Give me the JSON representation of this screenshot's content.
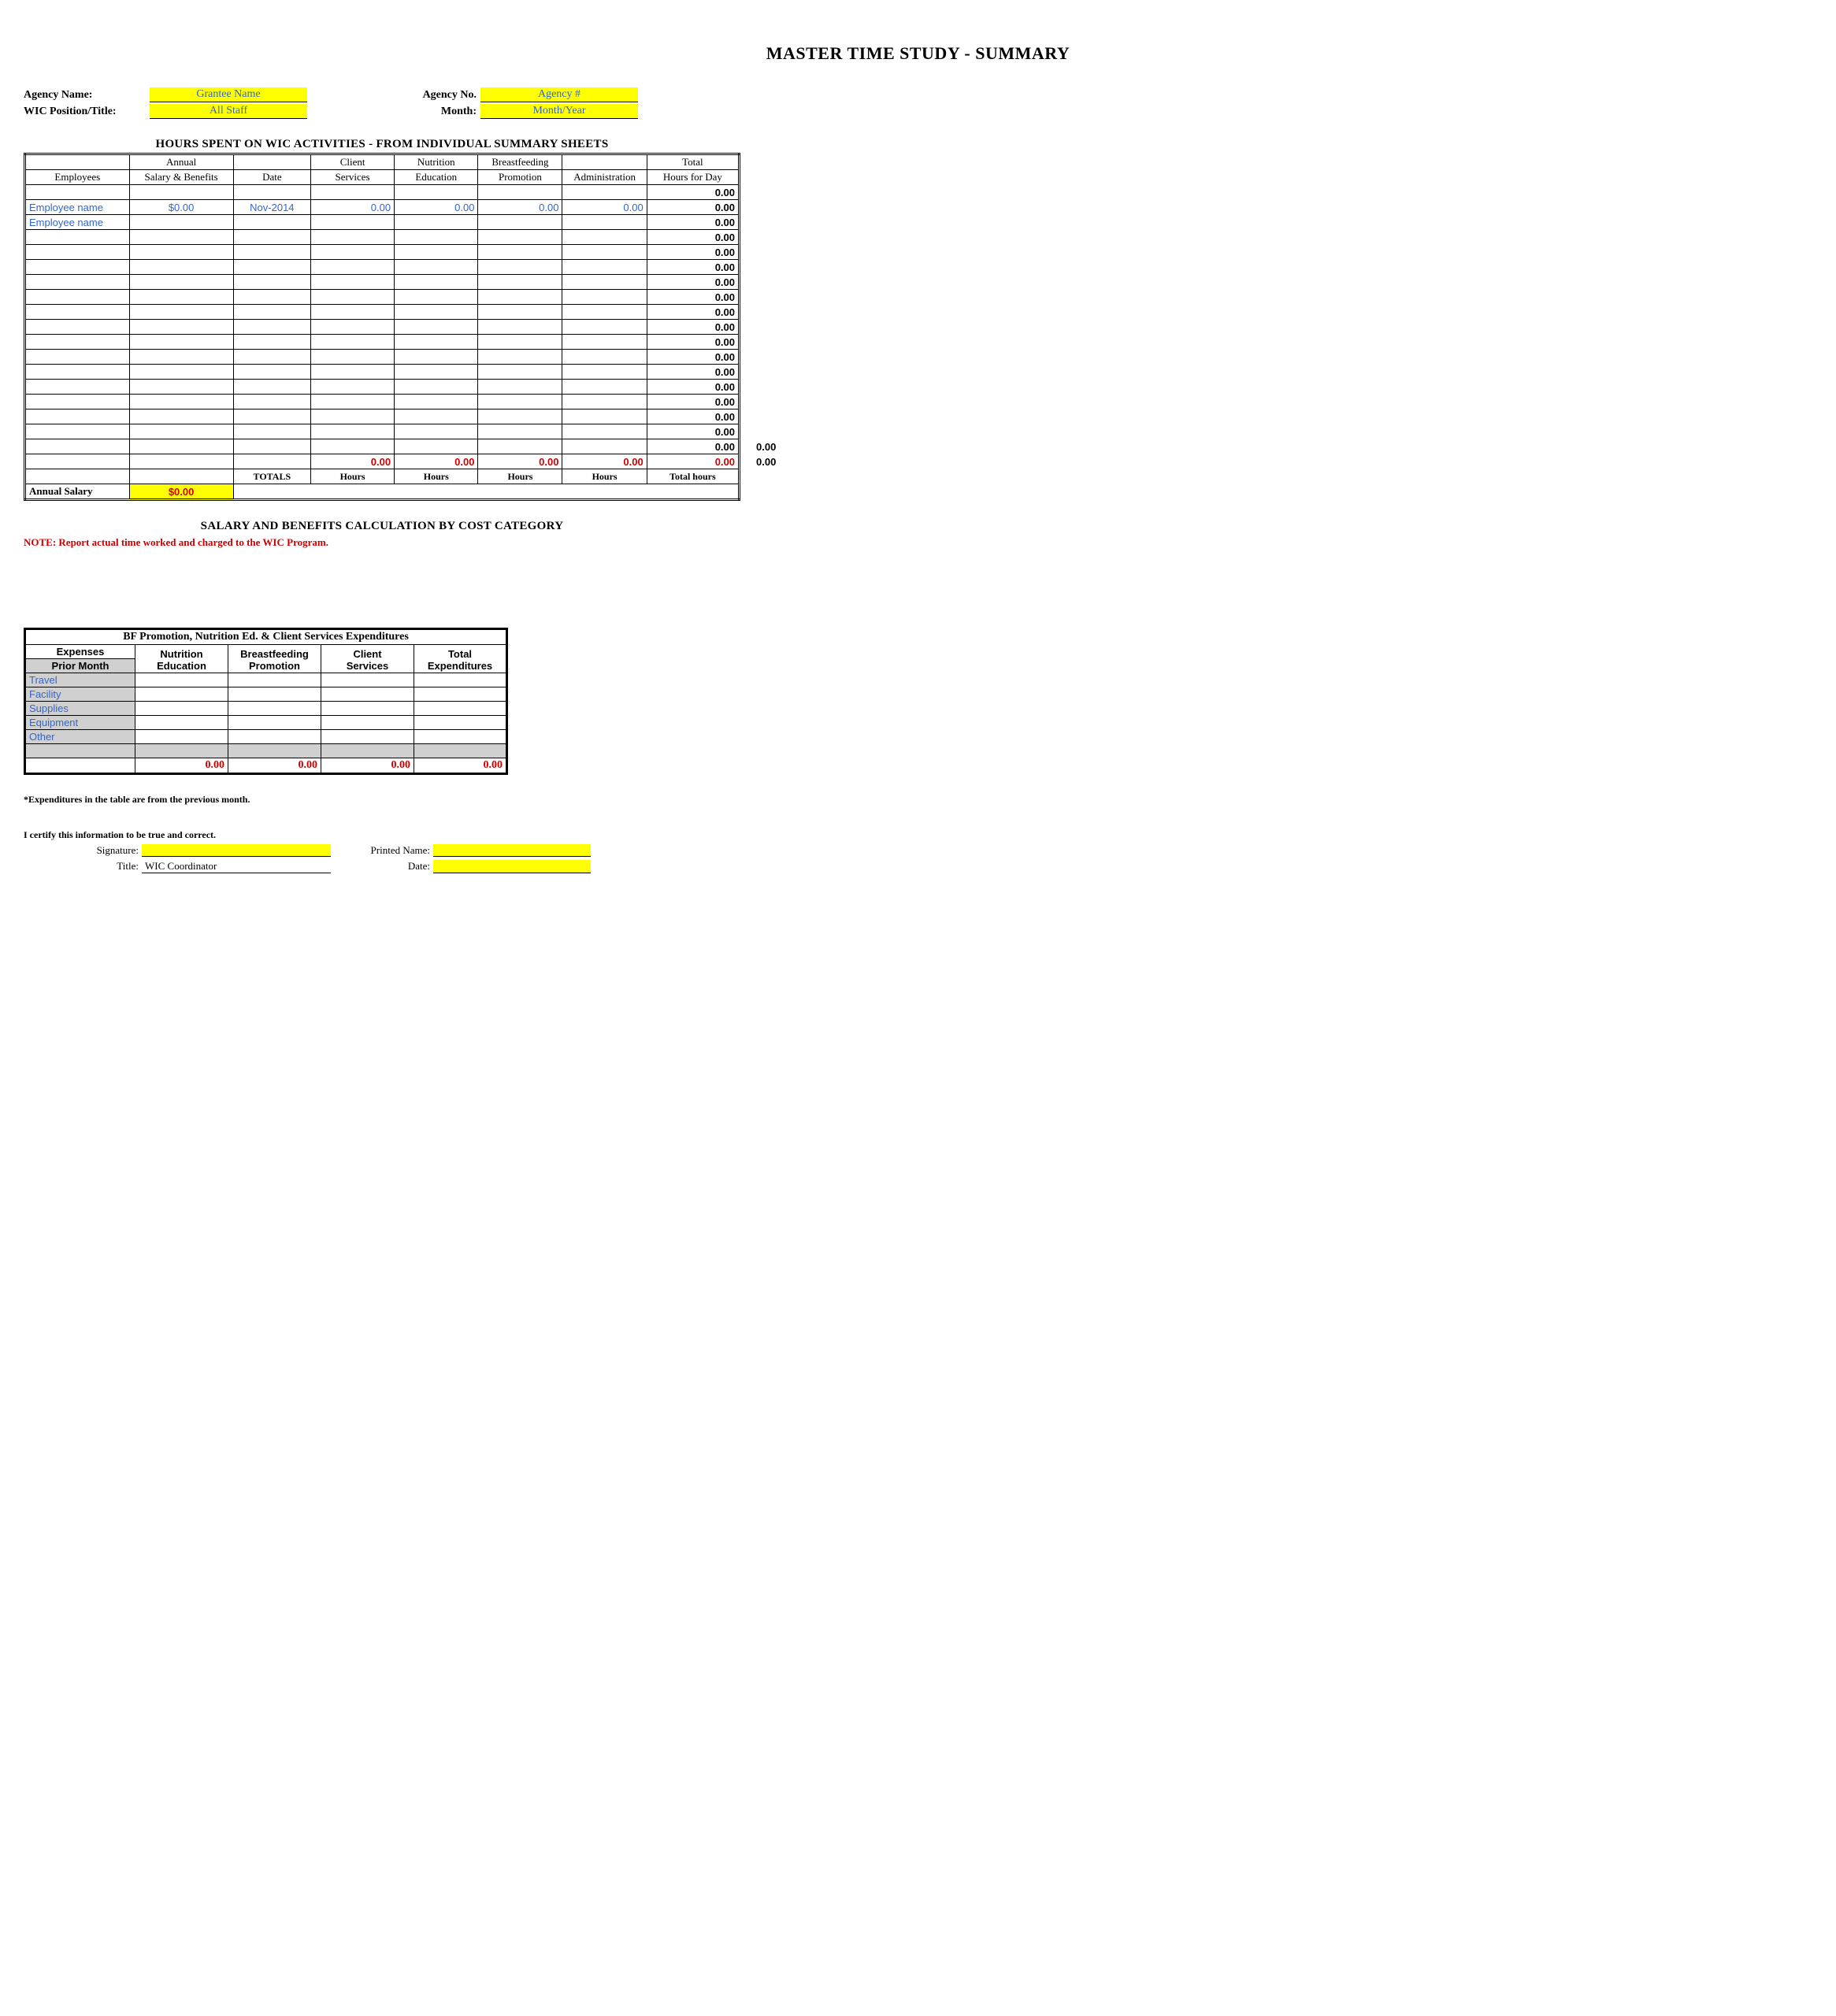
{
  "title": "MASTER TIME STUDY - SUMMARY",
  "info": {
    "agency_name_label": "Agency Name:",
    "agency_name": "Grantee Name",
    "wic_position_label": "WIC Position/Title:",
    "wic_position": "All Staff",
    "agency_no_label": "Agency No.",
    "agency_no": "Agency #",
    "month_label": "Month:",
    "month": "Month/Year"
  },
  "hours_section_header": "HOURS SPENT ON WIC ACTIVITIES - FROM INDIVIDUAL SUMMARY SHEETS",
  "columns": {
    "employees": "Employees",
    "salary_top": "Annual",
    "salary_bottom": "Salary & Benefits",
    "date": "Date",
    "client_top": "Client",
    "client_bottom": "Services",
    "nut_top": "Nutrition",
    "nut_bottom": "Education",
    "bf_top": "Breastfeeding",
    "bf_bottom": "Promotion",
    "admin": "Administration",
    "total_top": "Total",
    "total_bottom": "Hours for Day"
  },
  "rows": [
    {
      "emp": "",
      "sal": "",
      "date": "",
      "cs": "",
      "ne": "",
      "bf": "",
      "ad": "",
      "tot": "0.00",
      "blue": false
    },
    {
      "emp": "Employee name",
      "sal": "$0.00",
      "date": "Nov-2014",
      "cs": "0.00",
      "ne": "0.00",
      "bf": "0.00",
      "ad": "0.00",
      "tot": "0.00",
      "blue": true
    },
    {
      "emp": "Employee name",
      "sal": "",
      "date": "",
      "cs": "",
      "ne": "",
      "bf": "",
      "ad": "",
      "tot": "0.00",
      "blue": true
    },
    {
      "emp": "",
      "sal": "",
      "date": "",
      "cs": "",
      "ne": "",
      "bf": "",
      "ad": "",
      "tot": "0.00",
      "blue": false
    },
    {
      "emp": "",
      "sal": "",
      "date": "",
      "cs": "",
      "ne": "",
      "bf": "",
      "ad": "",
      "tot": "0.00",
      "blue": false
    },
    {
      "emp": "",
      "sal": "",
      "date": "",
      "cs": "",
      "ne": "",
      "bf": "",
      "ad": "",
      "tot": "0.00",
      "blue": false
    },
    {
      "emp": "",
      "sal": "",
      "date": "",
      "cs": "",
      "ne": "",
      "bf": "",
      "ad": "",
      "tot": "0.00",
      "blue": false
    },
    {
      "emp": "",
      "sal": "",
      "date": "",
      "cs": "",
      "ne": "",
      "bf": "",
      "ad": "",
      "tot": "0.00",
      "blue": false
    },
    {
      "emp": "",
      "sal": "",
      "date": "",
      "cs": "",
      "ne": "",
      "bf": "",
      "ad": "",
      "tot": "0.00",
      "blue": false
    },
    {
      "emp": "",
      "sal": "",
      "date": "",
      "cs": "",
      "ne": "",
      "bf": "",
      "ad": "",
      "tot": "0.00",
      "blue": false
    },
    {
      "emp": "",
      "sal": "",
      "date": "",
      "cs": "",
      "ne": "",
      "bf": "",
      "ad": "",
      "tot": "0.00",
      "blue": false
    },
    {
      "emp": "",
      "sal": "",
      "date": "",
      "cs": "",
      "ne": "",
      "bf": "",
      "ad": "",
      "tot": "0.00",
      "blue": false
    },
    {
      "emp": "",
      "sal": "",
      "date": "",
      "cs": "",
      "ne": "",
      "bf": "",
      "ad": "",
      "tot": "0.00",
      "blue": false
    },
    {
      "emp": "",
      "sal": "",
      "date": "",
      "cs": "",
      "ne": "",
      "bf": "",
      "ad": "",
      "tot": "0.00",
      "blue": false
    },
    {
      "emp": "",
      "sal": "",
      "date": "",
      "cs": "",
      "ne": "",
      "bf": "",
      "ad": "",
      "tot": "0.00",
      "blue": false
    },
    {
      "emp": "",
      "sal": "",
      "date": "",
      "cs": "",
      "ne": "",
      "bf": "",
      "ad": "",
      "tot": "0.00",
      "blue": false
    },
    {
      "emp": "",
      "sal": "",
      "date": "",
      "cs": "",
      "ne": "",
      "bf": "",
      "ad": "",
      "tot": "0.00",
      "blue": false
    },
    {
      "emp": "",
      "sal": "",
      "date": "",
      "cs": "",
      "ne": "",
      "bf": "",
      "ad": "",
      "tot": "0.00",
      "blue": false
    }
  ],
  "red_totals": {
    "cs": "0.00",
    "ne": "0.00",
    "bf": "0.00",
    "ad": "0.00",
    "tot": "0.00"
  },
  "footer_row": {
    "totals_label": "TOTALS",
    "hours": "Hours",
    "total_hours": "Total hours"
  },
  "annual_salary": {
    "label": "Annual Salary",
    "value": "$0.00"
  },
  "outside": {
    "v1": "0.00",
    "v2": "0.00"
  },
  "salary_section_header": "SALARY AND BENEFITS CALCULATION BY COST CATEGORY",
  "note": "NOTE:  Report actual time worked and charged to the WIC Program.",
  "exp": {
    "title": "BF Promotion, Nutrition Ed. & Client Services Expenditures",
    "col1_top": "Expenses",
    "col1_bottom": "Prior Month",
    "col_ne_top": "Nutrition",
    "col_ne_bottom": "Education",
    "col_bf_top": "Breastfeeding",
    "col_bf_bottom": "Promotion",
    "col_cs_top": "Client",
    "col_cs_bottom": "Services",
    "col_tot_top": "Total",
    "col_tot_bottom": "Expenditures",
    "categories": [
      "Travel",
      "Facility",
      "Supplies",
      "Equipment",
      "Other"
    ],
    "totals": {
      "ne": "0.00",
      "bf": "0.00",
      "cs": "0.00",
      "tot": "0.00"
    }
  },
  "footnote": "*Expenditures in the table are from the previous month.",
  "certify": "I certify this information to be true and correct.",
  "sig": {
    "signature_label": "Signature:",
    "printed_label": "Printed Name:",
    "title_label": "Title:",
    "title_value": "WIC Coordinator",
    "date_label": "Date:"
  }
}
